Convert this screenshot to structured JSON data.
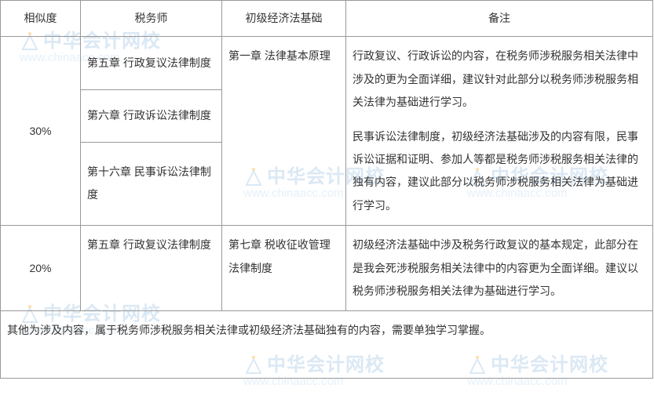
{
  "headers": {
    "similarity": "相似度",
    "tax_advisor": "税务师",
    "junior_economics": "初级经济法基础",
    "remarks": "备注"
  },
  "rows": {
    "group1": {
      "similarity": "30%",
      "tax1": "第五章 行政复议法律制度",
      "tax2": "第六章 行政诉讼法律制度",
      "tax3": "第十六章 民事诉讼法律制度",
      "junior": "第一章 法律基本原理",
      "remark": "行政复议、行政诉讼的内容，在税务师涉税服务相关法律中涉及的更为全面详细，建议针对此部分以税务师涉税服务相关法律为基础进行学习。\n\n民事诉讼法律制度，初级经济法基础涉及的内容有限，民事诉讼证据和证明、参加人等都是税务师涉税服务相关法律的独有内容，建议此部分以税务师涉税服务相关法律为基础进行学习。"
    },
    "group2": {
      "similarity": "20%",
      "tax": "第五章 行政复议法律制度",
      "junior": "第七章 税收征收管理法律制度",
      "remark": "初级经济法基础中涉及税务行政复议的基本规定，此部分在是我会死涉税服务相关法律中的内容更为全面详细。建议以税务师涉税服务相关法律为基础进行学习。"
    }
  },
  "footer": "其他为涉及内容，属于税务师涉税服务相关法律或初级经济法基础独有的内容，需要单独学习掌握。",
  "watermark": {
    "brand": "中华会计网校",
    "url": "www.chinaacc.com"
  }
}
